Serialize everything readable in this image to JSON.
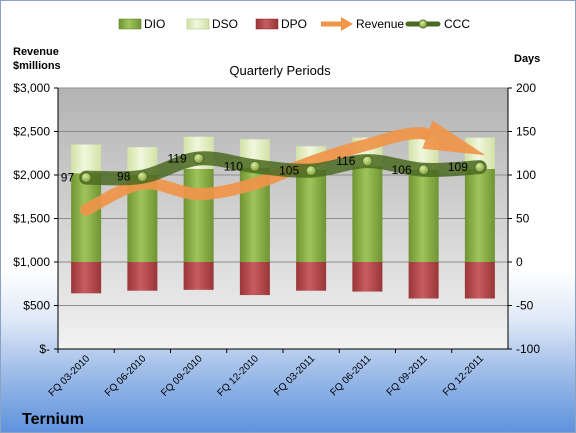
{
  "chart_data": {
    "type": "bar",
    "subtitle": "Quarterly Periods",
    "company": "Ternium",
    "left_axis_title": [
      "Revenue",
      "$millions"
    ],
    "right_axis_title": "Days",
    "left_ylim": [
      0,
      3000
    ],
    "left_ticks": [
      "$-",
      "$500",
      "$1,000",
      "$1,500",
      "$2,000",
      "$2,500",
      "$3,000"
    ],
    "right_ylim": [
      -100,
      200
    ],
    "right_ticks": [
      "-100",
      "-50",
      "0",
      "50",
      "100",
      "150",
      "200"
    ],
    "categories": [
      "FQ 03-2010",
      "FQ 06-2010",
      "FQ 09-2010",
      "FQ 12-2010",
      "FQ 03-2011",
      "FQ 06-2011",
      "FQ 09-2011",
      "FQ 12-2011"
    ],
    "legend_position": "top",
    "series": [
      {
        "name": "DIO",
        "axis": "days",
        "kind": "stacked-bar",
        "color": "#8db04a",
        "values": [
          102,
          100,
          107,
          108,
          106,
          110,
          106,
          107
        ]
      },
      {
        "name": "DSO",
        "axis": "days",
        "kind": "stacked-bar",
        "color": "#e6f0c9",
        "values": [
          33,
          32,
          37,
          33,
          27,
          33,
          37,
          36
        ]
      },
      {
        "name": "DPO",
        "axis": "days",
        "kind": "negative-bar",
        "color": "#b84a4d",
        "values": [
          -36,
          -33,
          -32,
          -38,
          -33,
          -34,
          -42,
          -42
        ]
      },
      {
        "name": "Revenue",
        "axis": "revenue",
        "kind": "arrow",
        "color": "#f0954a",
        "values": [
          1600,
          1900,
          1780,
          1900,
          2150,
          2350,
          2480,
          2250
        ]
      },
      {
        "name": "CCC",
        "axis": "days",
        "kind": "line",
        "color": "#5b7a2e",
        "values": [
          97,
          98,
          119,
          110,
          105,
          116,
          106,
          109
        ]
      }
    ],
    "grid": true
  }
}
